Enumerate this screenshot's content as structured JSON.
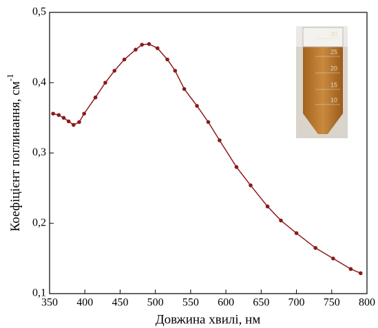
{
  "chart_data": {
    "type": "line",
    "xlabel": "Довжина хвилі, нм",
    "ylabel": "Коефіцієнт поглинання, см",
    "ylabel_sup": "-1",
    "x": [
      355,
      363,
      370,
      377,
      384,
      392,
      399,
      415,
      429,
      442,
      456,
      472,
      481,
      491,
      503,
      517,
      528,
      541,
      559,
      575,
      591,
      615,
      635,
      659,
      678,
      700,
      727,
      752,
      777,
      791
    ],
    "series": [
      {
        "color": "#8b1a1a",
        "values": [
          0.356,
          0.354,
          0.35,
          0.345,
          0.34,
          0.344,
          0.356,
          0.379,
          0.4,
          0.417,
          0.433,
          0.447,
          0.454,
          0.455,
          0.449,
          0.433,
          0.417,
          0.391,
          0.367,
          0.344,
          0.318,
          0.28,
          0.254,
          0.224,
          0.204,
          0.186,
          0.165,
          0.15,
          0.135,
          0.129
        ]
      }
    ],
    "xlim": [
      350,
      800
    ],
    "xticks": [
      350,
      400,
      450,
      500,
      550,
      600,
      650,
      700,
      750,
      800
    ],
    "ylim": [
      0.1,
      0.5
    ],
    "yticks": [
      {
        "value": 0.1,
        "label": "0,1"
      },
      {
        "value": 0.2,
        "label": "0,2"
      },
      {
        "value": 0.3,
        "label": "0,3"
      },
      {
        "value": 0.4,
        "label": "0,4"
      },
      {
        "value": 0.5,
        "label": "0,5"
      }
    ],
    "inset_scale": [
      "30",
      "25",
      "20",
      "15",
      "10"
    ]
  }
}
